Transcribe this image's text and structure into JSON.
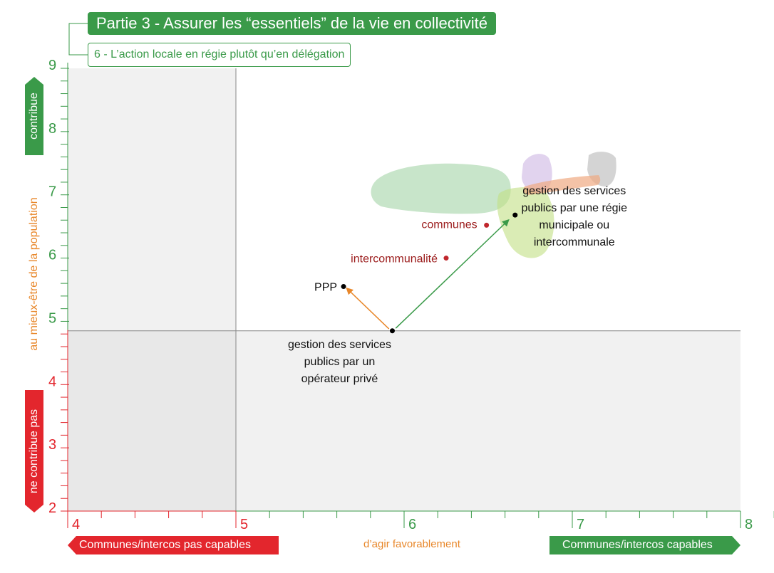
{
  "header": {
    "title": "Partie 3 - Assurer les “essentiels” de la vie en collectivité",
    "subtitle": "6 - L’action locale en régie plutôt qu’en délégation"
  },
  "colors": {
    "green": "#3a9a49",
    "red": "#e3262d",
    "orange": "#e8872a",
    "dark_red": "#9b1b1b",
    "grid": "#888888"
  },
  "chart_data": {
    "type": "scatter",
    "xlim": [
      4,
      8
    ],
    "ylim": [
      2,
      9
    ],
    "x_ticks": [
      4,
      5,
      6,
      7,
      8
    ],
    "y_ticks": [
      9,
      8,
      7,
      6,
      5,
      4,
      3,
      2
    ],
    "quadrant_lines": {
      "x": 5,
      "y": 4.85
    },
    "x_axis": {
      "left_label": "Communes/intercos pas capables",
      "center_label": "d’agir favorablement",
      "right_label": "Communes/intercos capables"
    },
    "y_axis": {
      "top_label": "contribue",
      "middle_label": "au mieux-être de la population",
      "bottom_label": "ne contribue pas"
    },
    "points": [
      {
        "label_lines": [
          "gestion des services",
          "publics par un",
          "opérateur privé"
        ],
        "x": 5.93,
        "y": 4.85,
        "color": "#000000"
      },
      {
        "label_lines": [
          "PPP"
        ],
        "x": 5.64,
        "y": 5.55,
        "color": "#000000"
      },
      {
        "label_lines": [
          "intercommunalité"
        ],
        "x": 6.25,
        "y": 6.0,
        "color": "#c0272d"
      },
      {
        "label_lines": [
          "communes"
        ],
        "x": 6.49,
        "y": 6.52,
        "color": "#c0272d"
      },
      {
        "label_lines": [
          "gestion des services",
          "publics par une régie",
          "municipale ou",
          "intercommunale"
        ],
        "x": 6.66,
        "y": 6.68,
        "color": "#000000"
      }
    ],
    "arrows": [
      {
        "from": [
          5.91,
          4.88
        ],
        "to": [
          5.66,
          5.52
        ],
        "color": "#e8872a"
      },
      {
        "from": [
          5.95,
          4.89
        ],
        "to": [
          6.62,
          6.6
        ],
        "color": "#3a9a49"
      }
    ]
  }
}
